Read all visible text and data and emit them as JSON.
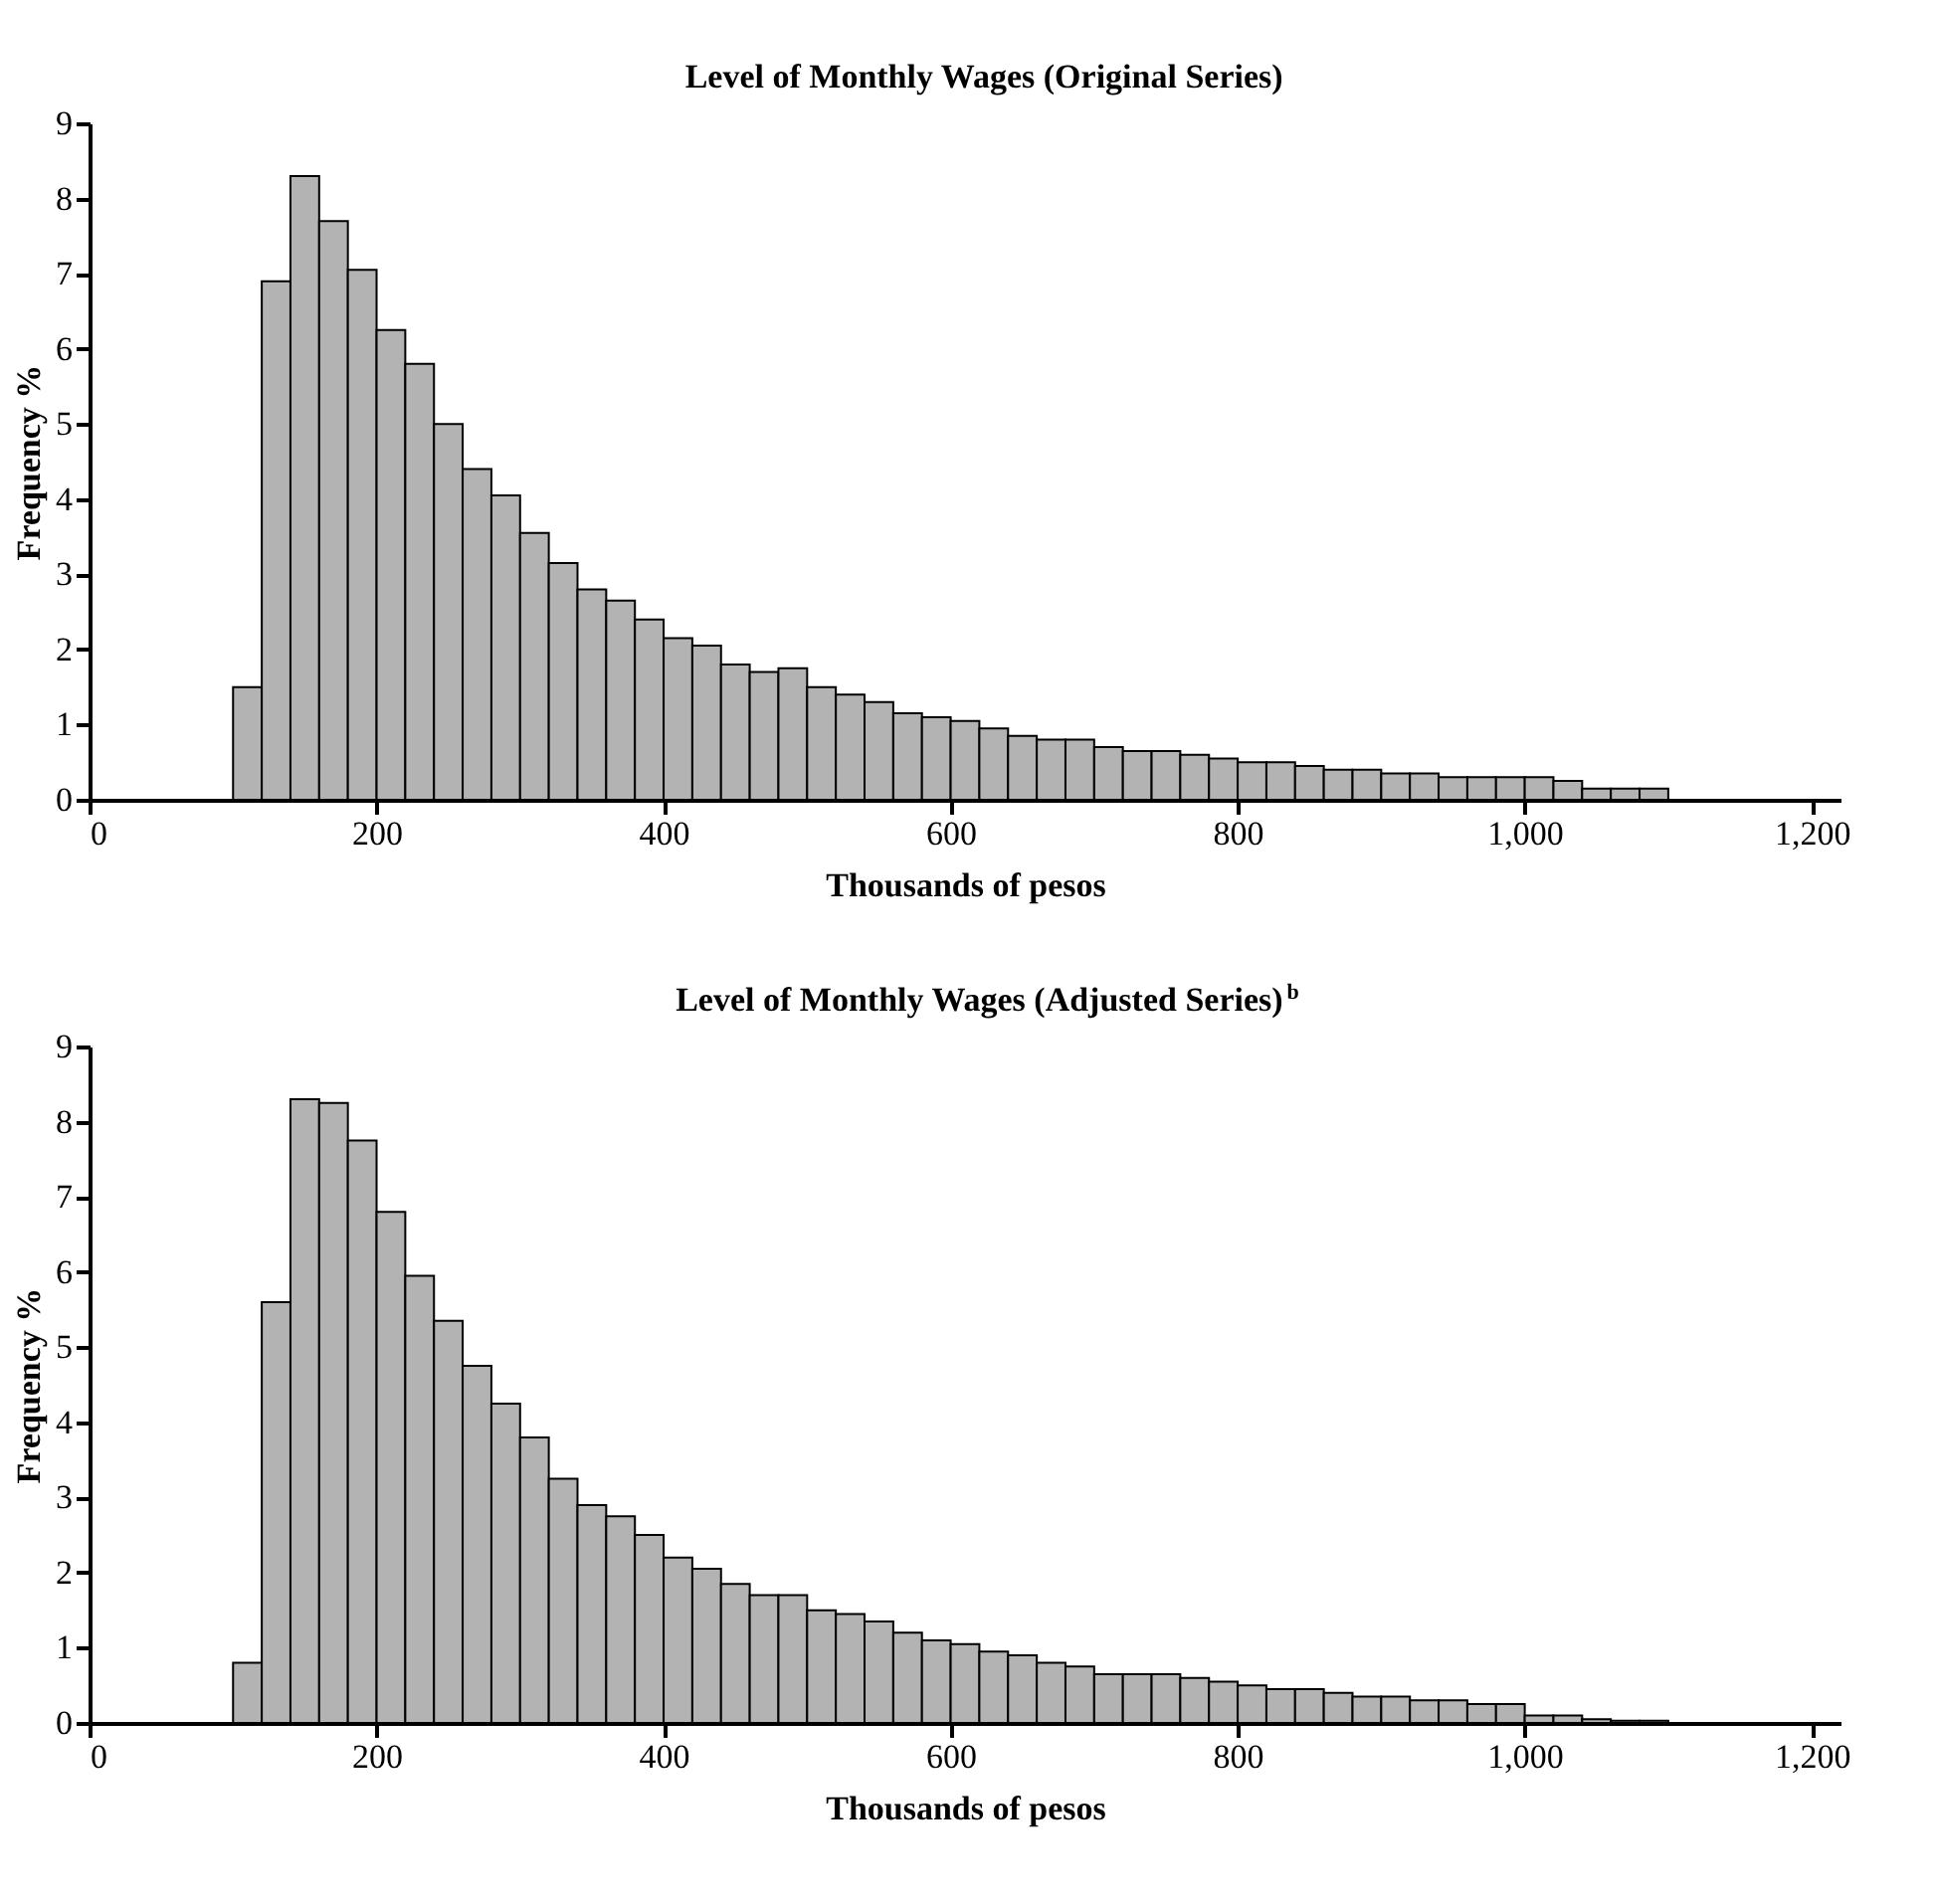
{
  "chart_data": [
    {
      "type": "histogram",
      "title": "Level of Monthly Wages (Original Series)",
      "xlabel": "Thousands of pesos",
      "ylabel": "Frequency %",
      "color": "#b3b3b3",
      "grid": false,
      "bins": [
        100,
        120,
        140,
        160,
        180,
        200,
        220,
        240,
        260,
        280,
        300,
        320,
        340,
        360,
        380,
        400,
        420,
        440,
        460,
        480,
        500,
        520,
        540,
        560,
        580,
        600,
        620,
        640,
        660,
        680,
        700,
        720,
        740,
        760,
        780,
        800,
        820,
        840,
        860,
        880,
        900,
        920,
        940,
        960,
        980,
        1000,
        1020,
        1040,
        1060,
        1080,
        1100
      ],
      "values": [
        1.5,
        6.9,
        8.3,
        7.7,
        7.05,
        6.25,
        5.8,
        5.0,
        4.4,
        4.05,
        3.55,
        3.15,
        2.8,
        2.65,
        2.4,
        2.15,
        2.05,
        1.8,
        1.7,
        1.75,
        1.5,
        1.4,
        1.3,
        1.15,
        1.1,
        1.05,
        0.95,
        0.85,
        0.8,
        0.8,
        0.7,
        0.65,
        0.65,
        0.6,
        0.55,
        0.5,
        0.5,
        0.45,
        0.4,
        0.4,
        0.35,
        0.35,
        0.3,
        0.3,
        0.3,
        0.3,
        0.25,
        0.15,
        0.15,
        0.15
      ],
      "xlim": [
        0,
        1220
      ],
      "ylim": [
        0,
        9
      ],
      "xticks": [
        0,
        200,
        400,
        600,
        800,
        {
          "value": 1000,
          "label": "1,000"
        },
        {
          "value": 1200,
          "label": "1,200"
        }
      ],
      "yticks": [
        0,
        1,
        2,
        3,
        4,
        5,
        6,
        7,
        8,
        9
      ]
    },
    {
      "type": "histogram",
      "title": "Level of Monthly Wages (Adjusted Series)$^{b}$",
      "xlabel": "Thousands of pesos",
      "ylabel": "Frequency %",
      "color": "#b3b3b3",
      "grid": false,
      "bins": [
        100,
        120,
        140,
        160,
        180,
        200,
        220,
        240,
        260,
        280,
        300,
        320,
        340,
        360,
        380,
        400,
        420,
        440,
        460,
        480,
        500,
        520,
        540,
        560,
        580,
        600,
        620,
        640,
        660,
        680,
        700,
        720,
        740,
        760,
        780,
        800,
        820,
        840,
        860,
        880,
        900,
        920,
        940,
        960,
        980,
        1000,
        1020,
        1040,
        1060,
        1080,
        1100
      ],
      "values": [
        0.8,
        5.6,
        8.3,
        8.25,
        7.75,
        6.8,
        5.95,
        5.35,
        4.75,
        4.25,
        3.8,
        3.25,
        2.9,
        2.75,
        2.5,
        2.2,
        2.05,
        1.85,
        1.7,
        1.7,
        1.5,
        1.45,
        1.35,
        1.2,
        1.1,
        1.05,
        0.95,
        0.9,
        0.8,
        0.75,
        0.65,
        0.65,
        0.65,
        0.6,
        0.55,
        0.5,
        0.45,
        0.45,
        0.4,
        0.35,
        0.35,
        0.3,
        0.3,
        0.25,
        0.25,
        0.1,
        0.1,
        0.05,
        0.03,
        0.03
      ],
      "xlim": [
        0,
        1220
      ],
      "ylim": [
        0,
        9
      ],
      "xticks": [
        0,
        200,
        400,
        600,
        800,
        {
          "value": 1000,
          "label": "1,000"
        },
        {
          "value": 1200,
          "label": "1,200"
        }
      ],
      "yticks": [
        0,
        1,
        2,
        3,
        4,
        5,
        6,
        7,
        8,
        9
      ]
    }
  ]
}
